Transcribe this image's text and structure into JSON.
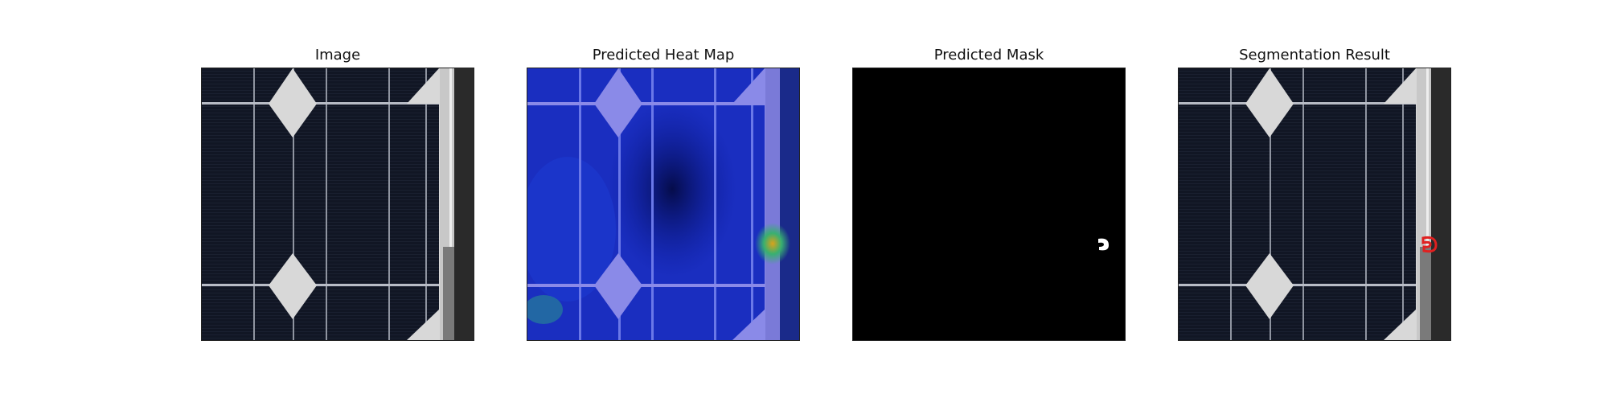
{
  "panels": [
    {
      "id": "image",
      "title": "Image",
      "icon": "solar-cell-photo"
    },
    {
      "id": "heatmap",
      "title": "Predicted Heat Map",
      "icon": "heatmap-overlay"
    },
    {
      "id": "mask",
      "title": "Predicted Mask",
      "icon": "binary-mask"
    },
    {
      "id": "segmentation",
      "title": "Segmentation Result",
      "icon": "segmentation-overlay"
    }
  ],
  "colors": {
    "cell_dark": "#111624",
    "busbar": "#b8bcc6",
    "highlight": "#d8d8d8",
    "heat_blue": "#0a1a9a",
    "heat_purple": "#8a8ae8",
    "mask_bg": "#000000",
    "mask_fg": "#ffffff",
    "contour": "#e02020"
  }
}
